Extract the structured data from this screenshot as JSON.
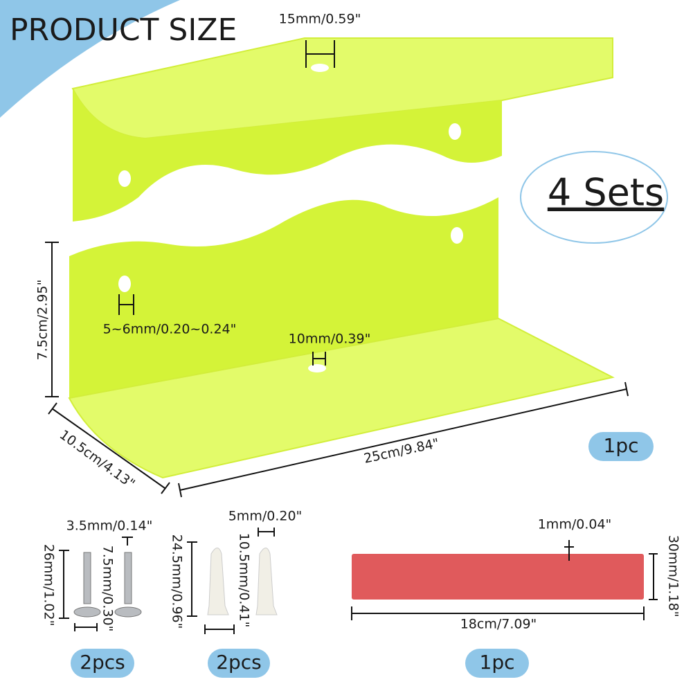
{
  "header": {
    "title": "PRODUCT SIZE",
    "badge": "4 Sets"
  },
  "shelf": {
    "opening": "15mm/0.59\"",
    "height": "7.5cm/2.95\"",
    "keyhole": "5~6mm/0.20~0.24\"",
    "hole": "10mm/0.39\"",
    "depth": "10.5cm/4.13\"",
    "length": "25cm/9.84\"",
    "quantity": "1pc"
  },
  "screws": {
    "diameter": "3.5mm/0.14\"",
    "length": "26mm/1.02\"",
    "head": "7.5mm/0.30\"",
    "quantity": "2pcs"
  },
  "anchors": {
    "diameter": "5mm/0.20\"",
    "length": "24.5mm/0.96\"",
    "head": "10.5mm/0.41\"",
    "quantity": "2pcs"
  },
  "tape": {
    "thickness": "1mm/0.04\"",
    "width": "30mm/1.18\"",
    "length": "18cm/7.09\"",
    "quantity": "1pc"
  }
}
